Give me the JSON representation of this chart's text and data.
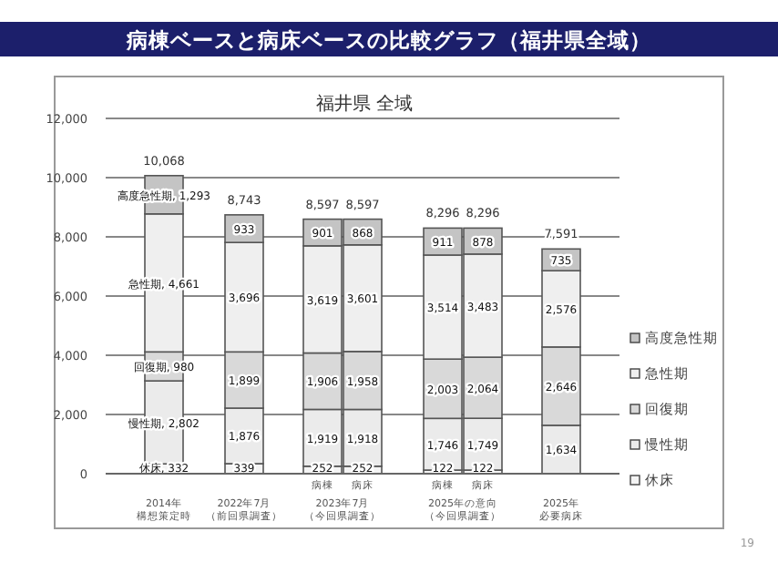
{
  "chart_data": {
    "type": "bar",
    "stacked": true,
    "title": "病棟ベースと病床ベースの比較グラフ（福井県全域）",
    "subtitle": "福井県 全域",
    "categories": [
      "2014年構想策定時",
      "2022年7月（前回県調査）",
      "病棟",
      "病床",
      "病棟",
      "病床",
      "2025年必要病床"
    ],
    "series": [
      {
        "name": "休床",
        "color": "#f4f4f4",
        "values": [
          332,
          339,
          252,
          252,
          122,
          122,
          null
        ],
        "value_labels": [
          "休床, 332",
          "339",
          "252",
          "252",
          "122",
          "122",
          null
        ]
      },
      {
        "name": "慢性期",
        "color": "#ebebeb",
        "values": [
          2802,
          1876,
          1919,
          1918,
          1746,
          1749,
          1634
        ],
        "value_labels": [
          "慢性期, 2,802",
          "1,876",
          "1,919",
          "1,918",
          "1,746",
          "1,749",
          "1,634"
        ]
      },
      {
        "name": "回復期",
        "color": "#d9d9d9",
        "values": [
          980,
          1899,
          1906,
          1958,
          2003,
          2064,
          2646
        ],
        "value_labels": [
          "回復期, 980",
          "1,899",
          "1,906",
          "1,958",
          "2,003",
          "2,064",
          "2,646"
        ]
      },
      {
        "name": "急性期",
        "color": "#efefef",
        "values": [
          4661,
          3696,
          3619,
          3601,
          3514,
          3483,
          2576
        ],
        "value_labels": [
          "急性期, 4,661",
          "3,696",
          "3,619",
          "3,601",
          "3,514",
          "3,483",
          "2,576"
        ]
      },
      {
        "name": "高度急性期",
        "color": "#c4c4c4",
        "values": [
          1293,
          933,
          901,
          868,
          911,
          878,
          735
        ],
        "value_labels": [
          "高度急性期, 1,293",
          "933",
          "901",
          "868",
          "911",
          "878",
          "735"
        ]
      }
    ],
    "totals": [
      "10,068",
      "8,743",
      "8,597",
      "8,597",
      "8,296",
      "8,296",
      "7,591"
    ],
    "ylim": [
      0,
      12000
    ],
    "yticks": [
      0,
      {
        "value": 2000,
        "label": "2,000"
      },
      {
        "value": 4000,
        "label": "4,000"
      },
      {
        "value": 6000,
        "label": "6,000"
      },
      {
        "value": 8000,
        "label": "8,000"
      },
      {
        "value": 10000,
        "label": "10,000"
      },
      {
        "value": 12000,
        "label": "12,000"
      }
    ],
    "grid": "y",
    "legend": "right",
    "annotations": [
      "2023年7月（今回県調査）",
      "2025年の意向（今回県調査）",
      "19"
    ]
  }
}
